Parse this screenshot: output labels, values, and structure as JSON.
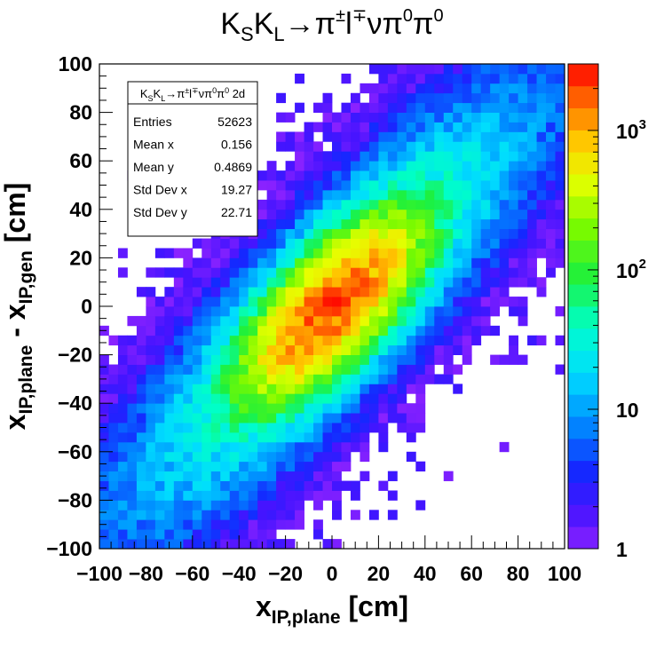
{
  "chart_data": {
    "type": "heatmap",
    "title": "K_S K_L → π^± l^∓ ν π^0 π^0",
    "xlabel": "x_{IP,plane} [cm]",
    "ylabel": "x_{IP,plane} - x_{IP,gen} [cm]",
    "xlim": [
      -100,
      100
    ],
    "ylim": [
      -100,
      100
    ],
    "zlim": [
      1,
      3000
    ],
    "z_scale": "log",
    "x_ticks": [
      "−100",
      "−80",
      "−60",
      "−40",
      "−20",
      "0",
      "20",
      "40",
      "60",
      "80",
      "100"
    ],
    "y_ticks": [
      "−100",
      "−80",
      "−60",
      "−40",
      "−20",
      "0",
      "20",
      "40",
      "60",
      "80",
      "100"
    ],
    "colorbar_ticks": [
      {
        "value": 1,
        "label": "1"
      },
      {
        "value": 10,
        "label": "10"
      },
      {
        "value": 100,
        "label": "10^2"
      },
      {
        "value": 1000,
        "label": "10^3"
      }
    ],
    "binning": {
      "nx": 50,
      "ny": 50
    },
    "distribution": {
      "peak_bin_content": 2000,
      "peak_at": [
        0,
        0
      ],
      "correlation_axis": "positive diagonal (y ≈ x)",
      "peak_color": "#ff0000",
      "low_color": "#8a22ff"
    },
    "grid": false,
    "stats_box": {
      "title": "K_S K_L → π^± l^∓ ν π^0 π^0 2d",
      "position": "top-left",
      "rows": [
        {
          "label": "Entries",
          "value": "52623"
        },
        {
          "label": "Mean x",
          "value": "0.156"
        },
        {
          "label": "Mean y",
          "value": "0.4869"
        },
        {
          "label": "Std Dev x",
          "value": "19.27"
        },
        {
          "label": "Std Dev y",
          "value": "22.71"
        }
      ]
    }
  }
}
